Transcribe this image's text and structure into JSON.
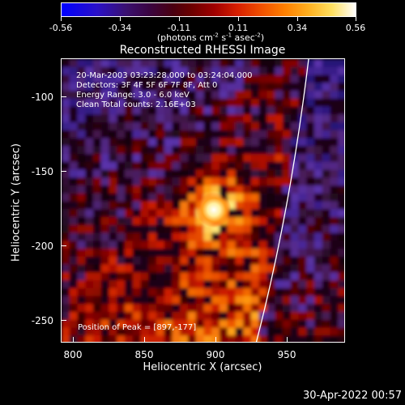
{
  "colorbar": {
    "ticks": [
      "-0.56",
      "-0.34",
      "-0.11",
      "0.11",
      "0.34",
      "0.56"
    ],
    "units_html": "(photons cm<sup>-2</sup> s<sup>-1</sup> asec<sup>-2</sup>)"
  },
  "title": "Reconstructed RHESSI Image",
  "info": {
    "line1": "20-Mar-2003 03:23:28.000 to 03:24:04.000",
    "line2": "Detectors: 3F 4F 5F 6F 7F 8F, Att 0",
    "line3": "Energy Range: 3.0 - 6.0 keV",
    "line4": "Clean     Total counts: 2.16E+03"
  },
  "peak": "Position of Peak = [897,-177]",
  "axes": {
    "xlabel": "Heliocentric X (arcsec)",
    "ylabel": "Heliocentric Y (arcsec)",
    "xticks": [
      "800",
      "850",
      "900",
      "950"
    ],
    "yticks": [
      "-100",
      "-150",
      "-200",
      "-250"
    ]
  },
  "timestamp": "30-Apr-2022 00:57",
  "colors": {
    "background": "#000000",
    "limb": "#ffffff",
    "cool": "#5a30a8",
    "hot": "#ffffff"
  }
}
